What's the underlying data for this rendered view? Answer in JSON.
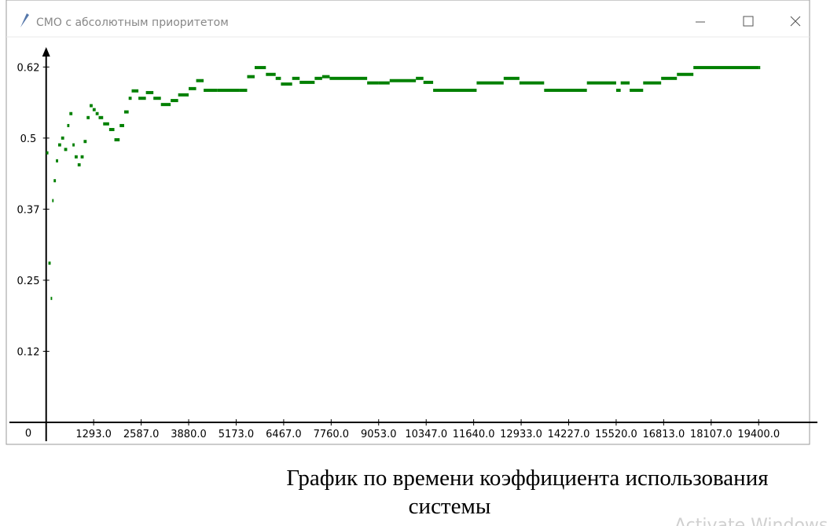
{
  "window": {
    "title": "СМО с абсолютным приоритетом"
  },
  "chart_data": {
    "type": "step",
    "x": [
      0,
      61,
      123,
      163,
      204,
      265,
      327,
      408,
      490,
      572,
      633,
      715,
      776,
      858,
      939,
      1021,
      1103,
      1184,
      1266,
      1348,
      1429,
      1552,
      1715,
      1858,
      2001,
      2124,
      2246,
      2328,
      2512,
      2716,
      2920,
      3124,
      3390,
      3594,
      3880,
      4084,
      4288,
      4656,
      5269,
      5473,
      5677,
      5983,
      6249,
      6392,
      6698,
      6902,
      7311,
      7515,
      7719,
      8740,
      9046,
      9353,
      10067,
      10272,
      10537,
      11721,
      12457,
      12886,
      13559,
      14723,
      15520,
      15643,
      15888,
      16255,
      16745,
      17174,
      17623,
      19400
    ],
    "series": [
      {
        "color": "#008000",
        "values": [
          0.474,
          0.28,
          0.218,
          0.39,
          0.425,
          0.46,
          0.488,
          0.5,
          0.48,
          0.522,
          0.543,
          0.488,
          0.467,
          0.453,
          0.467,
          0.494,
          0.536,
          0.557,
          0.55,
          0.543,
          0.536,
          0.525,
          0.515,
          0.497,
          0.522,
          0.546,
          0.57,
          0.583,
          0.57,
          0.58,
          0.57,
          0.559,
          0.566,
          0.576,
          0.587,
          0.601,
          0.584,
          0.584,
          0.584,
          0.608,
          0.624,
          0.612,
          0.605,
          0.595,
          0.605,
          0.598,
          0.605,
          0.608,
          0.605,
          0.597,
          0.597,
          0.601,
          0.605,
          0.598,
          0.584,
          0.597,
          0.605,
          0.597,
          0.584,
          0.597,
          0.584,
          0.597,
          0.584,
          0.597,
          0.605,
          0.612,
          0.624,
          0.624
        ]
      }
    ],
    "xlim": [
      -1000,
      21000
    ],
    "ylim": [
      0,
      0.66
    ],
    "xticks": [
      {
        "value": 1293,
        "label": "1293.0"
      },
      {
        "value": 2587,
        "label": "2587.0"
      },
      {
        "value": 3880,
        "label": "3880.0"
      },
      {
        "value": 5173,
        "label": "5173.0"
      },
      {
        "value": 6467,
        "label": "6467.0"
      },
      {
        "value": 7760,
        "label": "7760.0"
      },
      {
        "value": 9053,
        "label": "9053.0"
      },
      {
        "value": 10347,
        "label": "10347.0"
      },
      {
        "value": 11640,
        "label": "11640.0"
      },
      {
        "value": 12933,
        "label": "12933.0"
      },
      {
        "value": 14227,
        "label": "14227.0"
      },
      {
        "value": 15520,
        "label": "15520.0"
      },
      {
        "value": 16813,
        "label": "16813.0"
      },
      {
        "value": 18107,
        "label": "18107.0"
      },
      {
        "value": 19400,
        "label": "19400.0"
      }
    ],
    "yticks": [
      0,
      {
        "value": 0.125,
        "label": "0.12"
      },
      {
        "value": 0.25,
        "label": "0.25"
      },
      {
        "value": 0.375,
        "label": "0.37"
      },
      {
        "value": 0.5,
        "label": "0.5"
      },
      {
        "value": 0.625,
        "label": "0.62"
      }
    ]
  },
  "caption": [
    "График по времени коэффициента использования",
    "системы"
  ],
  "watermark": "Activate Windows"
}
